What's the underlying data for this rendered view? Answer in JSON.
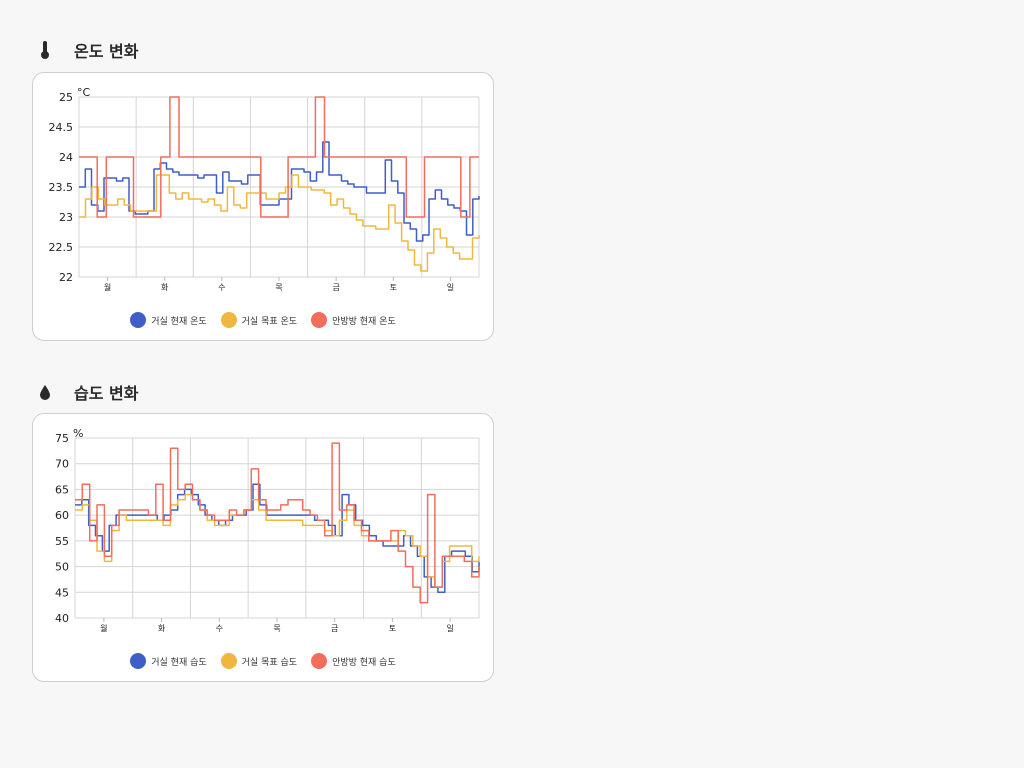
{
  "sections": [
    {
      "title": "온도 변화",
      "icon": "thermometer-icon",
      "chart_data": {
        "type": "line",
        "title": "온도 변화",
        "ylabel": "°C",
        "ylim": [
          22,
          25
        ],
        "y_ticks": [
          "22",
          "22.5",
          "23",
          "23.5",
          "24",
          "24.5",
          "25"
        ],
        "x_ticks": [
          "월",
          "화",
          "수",
          "목",
          "금",
          "토",
          "일"
        ],
        "grid": true,
        "legend_position": "bottom-center",
        "series": [
          {
            "name": "거실 현재 온도",
            "color": "#3f5fc8",
            "values": [
              23.5,
              23.8,
              23.2,
              23.1,
              23.65,
              23.65,
              23.6,
              23.65,
              23.1,
              23.05,
              23.05,
              23.1,
              23.8,
              23.9,
              23.8,
              23.75,
              23.7,
              23.7,
              23.7,
              23.65,
              23.7,
              23.7,
              23.4,
              23.75,
              23.6,
              23.6,
              23.55,
              23.7,
              23.7,
              23.2,
              23.2,
              23.2,
              23.3,
              23.3,
              23.8,
              23.8,
              23.75,
              23.6,
              23.75,
              24.25,
              23.7,
              23.7,
              23.6,
              23.55,
              23.5,
              23.5,
              23.4,
              23.4,
              23.4,
              23.95,
              23.6,
              23.4,
              22.9,
              22.8,
              22.6,
              22.7,
              23.3,
              23.45,
              23.3,
              23.2,
              23.15,
              23.1,
              22.7,
              23.3,
              23.35
            ]
          },
          {
            "name": "거실 목표 온도",
            "color": "#f0b740",
            "values": [
              23.0,
              23.3,
              23.5,
              23.3,
              23.2,
              23.2,
              23.3,
              23.2,
              23.1,
              23.1,
              23.1,
              23.1,
              23.7,
              23.7,
              23.4,
              23.3,
              23.4,
              23.3,
              23.3,
              23.25,
              23.3,
              23.2,
              23.1,
              23.5,
              23.2,
              23.15,
              23.4,
              23.4,
              23.4,
              23.3,
              23.3,
              23.4,
              23.5,
              23.7,
              23.5,
              23.5,
              23.45,
              23.45,
              23.4,
              23.2,
              23.3,
              23.15,
              23.05,
              22.95,
              22.85,
              22.85,
              22.8,
              22.8,
              23.2,
              22.9,
              22.6,
              22.45,
              22.2,
              22.1,
              22.4,
              22.8,
              22.65,
              22.5,
              22.4,
              22.3,
              22.3,
              22.65,
              22.7
            ]
          },
          {
            "name": "안방방 현재 온도",
            "color": "#f26d5b",
            "values": [
              24.0,
              24.0,
              23.0,
              24.0,
              24.0,
              24.0,
              23.0,
              23.0,
              23.0,
              24.0,
              25.0,
              24.0,
              24.0,
              24.0,
              24.0,
              24.0,
              24.0,
              24.0,
              24.0,
              24.0,
              23.0,
              23.0,
              23.0,
              24.0,
              24.0,
              24.0,
              25.0,
              24.0,
              24.0,
              24.0,
              24.0,
              24.0,
              24.0,
              24.0,
              24.0,
              24.0,
              23.0,
              23.0,
              24.0,
              24.0,
              24.0,
              24.0,
              23.0,
              24.0,
              24.0
            ]
          }
        ]
      }
    },
    {
      "title": "습도 변화",
      "icon": "water-drop-icon",
      "chart_data": {
        "type": "line",
        "title": "습도 변화",
        "ylabel": "%",
        "ylim": [
          40,
          75
        ],
        "y_ticks": [
          "40",
          "45",
          "50",
          "55",
          "60",
          "65",
          "70",
          "75"
        ],
        "x_ticks": [
          "월",
          "화",
          "수",
          "목",
          "금",
          "토",
          "일"
        ],
        "grid": true,
        "legend_position": "bottom-center",
        "series": [
          {
            "name": "거실 현재 습도",
            "color": "#3f5fc8",
            "values": [
              62,
              63,
              58,
              56,
              53,
              58,
              60,
              60,
              60,
              60,
              60,
              60,
              59,
              60,
              61,
              64,
              65,
              64,
              62,
              60,
              59,
              58,
              59,
              60,
              60,
              61,
              66,
              62,
              60,
              60,
              60,
              60,
              60,
              60,
              60,
              59,
              59,
              58,
              56,
              64,
              62,
              59,
              58,
              56,
              55,
              54,
              54,
              54,
              56,
              54,
              52,
              48,
              46,
              45,
              52,
              53,
              53,
              52,
              49,
              51
            ]
          },
          {
            "name": "거실 목표 습도",
            "color": "#f0b740",
            "values": [
              61,
              62,
              59,
              53,
              51,
              57,
              60,
              59,
              59,
              59,
              59,
              59,
              58,
              62,
              63,
              64,
              63,
              61,
              59,
              58,
              58,
              60,
              60,
              61,
              63,
              61,
              59,
              59,
              59,
              59,
              59,
              58,
              58,
              58,
              57,
              56,
              59,
              61,
              58,
              56,
              55,
              55,
              55,
              55,
              57,
              56,
              54,
              52,
              48,
              46,
              51,
              54,
              54,
              54,
              51,
              52
            ]
          },
          {
            "name": "안방방 현재 습도",
            "color": "#f26d5b",
            "values": [
              63,
              66,
              55,
              62,
              52,
              58,
              61,
              61,
              61,
              61,
              60,
              66,
              59,
              73,
              65,
              66,
              63,
              61,
              60,
              59,
              59,
              61,
              60,
              61,
              69,
              63,
              61,
              61,
              62,
              63,
              63,
              61,
              60,
              59,
              56,
              74,
              61,
              62,
              59,
              57,
              55,
              55,
              55,
              57,
              53,
              50,
              46,
              43,
              64,
              46,
              52,
              52,
              52,
              51,
              48,
              50
            ]
          }
        ]
      }
    }
  ]
}
